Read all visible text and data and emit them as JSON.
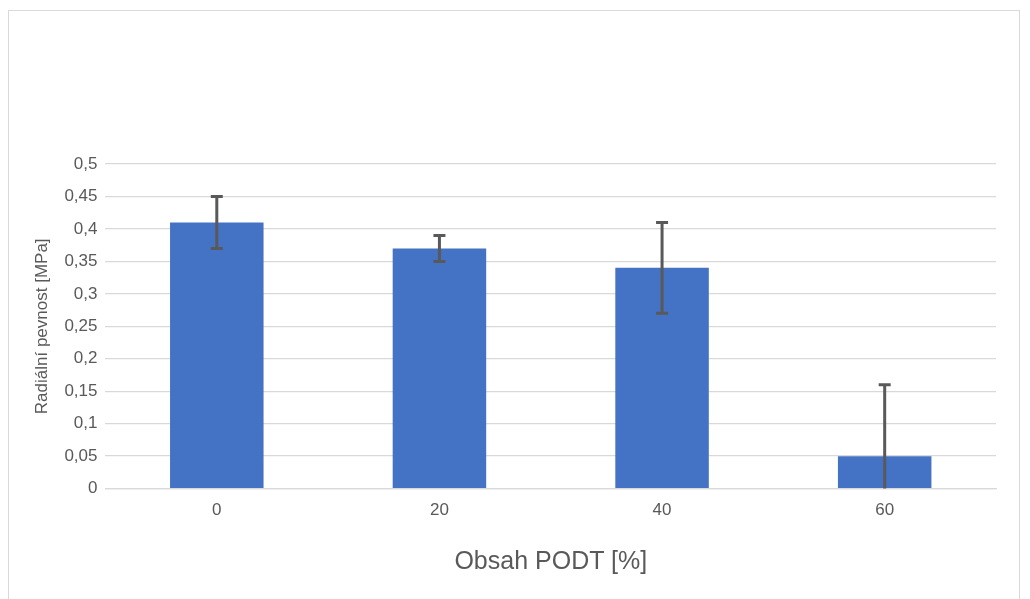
{
  "chart_data": {
    "type": "bar",
    "xlabel": "Obsah PODT [%]",
    "ylabel": "Radiální pevnost [MPa]",
    "categories": [
      "0",
      "20",
      "40",
      "60"
    ],
    "values": [
      0.41,
      0.37,
      0.34,
      0.05
    ],
    "errors": [
      [
        0.37,
        0.45
      ],
      [
        0.35,
        0.39
      ],
      [
        0.27,
        0.41
      ],
      [
        0,
        0.16
      ]
    ],
    "color": "#4472c4",
    "ylim": [
      0,
      0.5
    ],
    "yticks": [
      0,
      {
        "value": 0.05,
        "label": "0,05"
      },
      {
        "value": 0.1,
        "label": "0,1"
      },
      {
        "value": 0.15,
        "label": "0,15"
      },
      {
        "value": 0.2,
        "label": "0,2"
      },
      {
        "value": 0.25,
        "label": "0,25"
      },
      {
        "value": 0.3,
        "label": "0,3"
      },
      {
        "value": 0.35,
        "label": "0,35"
      },
      {
        "value": 0.4,
        "label": "0,4"
      },
      {
        "value": 0.45,
        "label": "0,45"
      },
      {
        "value": 0.5,
        "label": "0,5"
      }
    ],
    "grid": "y",
    "legend": false
  }
}
